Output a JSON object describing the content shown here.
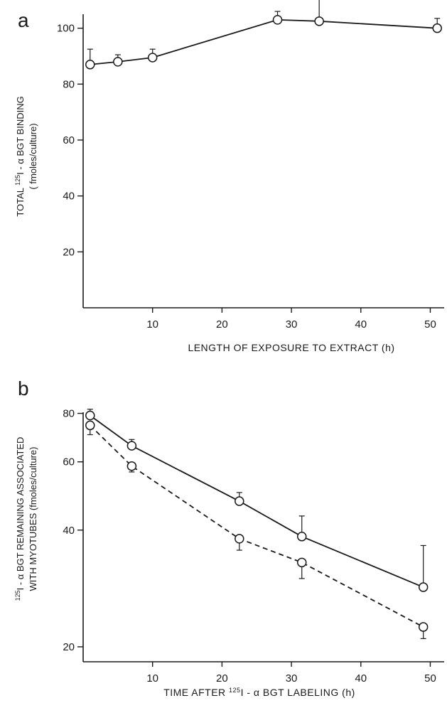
{
  "chart_data": [
    {
      "panel_letter": "a",
      "type": "line",
      "xlabel": "LENGTH OF EXPOSURE TO EXTRACT (h)",
      "ylabel": {
        "line1": {
          "prefix": "TOTAL ",
          "sup": "125",
          "suffix": "I - α BGT BINDING"
        },
        "line2": "( fmoles/culture)"
      },
      "xlim": [
        0,
        52
      ],
      "ylim": [
        0,
        105
      ],
      "y_scale": "linear",
      "xticks": [
        10,
        20,
        30,
        40,
        50
      ],
      "yticks": [
        20,
        40,
        60,
        80,
        100
      ],
      "series": [
        {
          "style": "solid",
          "marker": "open-circle",
          "x": [
            1,
            5,
            10,
            28,
            34,
            51
          ],
          "y": [
            87,
            88,
            89.5,
            103,
            102.5,
            100
          ],
          "err": [
            5.5,
            2.5,
            3,
            3,
            8,
            3.5
          ]
        }
      ]
    },
    {
      "panel_letter": "b",
      "type": "line",
      "xlabel": {
        "prefix": "TIME AFTER ",
        "sup": "125",
        "suffix": "I - α BGT LABELING (h)"
      },
      "ylabel": {
        "line1": {
          "prefix": "",
          "sup": "125",
          "suffix": "I - α BGT REMAINING ASSOCIATED"
        },
        "line2": "WITH MYOTUBES (fmoles/culture)"
      },
      "xlim": [
        0,
        52
      ],
      "ylim": [
        18.3,
        84
      ],
      "y_scale": "log",
      "xticks": [
        10,
        20,
        30,
        40,
        50
      ],
      "yticks": [
        20,
        40,
        60,
        80
      ],
      "series": [
        {
          "style": "solid",
          "marker": "open-circle",
          "x": [
            1,
            7,
            22.5,
            31.5,
            49
          ],
          "y": [
            79,
            66,
            47.5,
            38.5,
            28.5
          ],
          "err": [
            3,
            2.5,
            2.5,
            5,
            8
          ]
        },
        {
          "style": "dashed",
          "marker": "open-circle",
          "x": [
            1,
            7,
            22.5,
            31.5,
            49
          ],
          "y": [
            74.5,
            58.5,
            38,
            33,
            22.5
          ],
          "err": [
            4,
            2,
            2.5,
            3,
            1.5
          ]
        }
      ]
    }
  ]
}
